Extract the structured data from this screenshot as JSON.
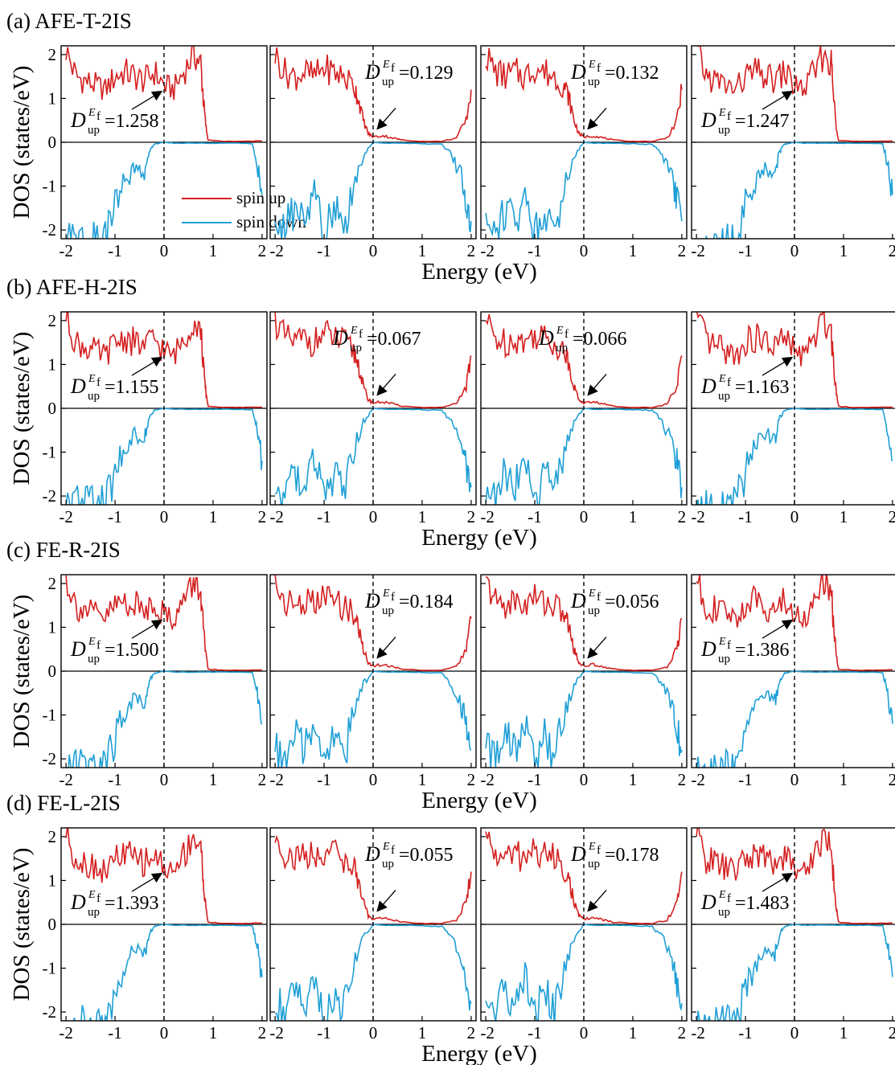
{
  "chart_data": {
    "type": "line",
    "x_ticks": [
      "-2",
      "-1",
      "0",
      "1",
      "2"
    ],
    "y_ticks": [
      "2",
      "1",
      "0",
      "-1",
      "-2"
    ],
    "xlim": [
      -2.1,
      2.1
    ],
    "ylim": [
      -2.2,
      2.2
    ],
    "xlabel": "Energy (eV)",
    "ylabel": "DOS (states/eV)",
    "legend": {
      "position": "bottom-right of first panel",
      "entries": [
        {
          "name": "spin up",
          "color": "#d42020"
        },
        {
          "name": "spin down",
          "color": "#1f9fd6"
        }
      ]
    },
    "colors": {
      "spin_up": "#d42020",
      "spin_down": "#1f9fd6"
    },
    "annotation_label": {
      "D": "D",
      "sup": "E",
      "sup_sub": "f",
      "sub": "up"
    },
    "groups": [
      {
        "label": "(a) AFE-T-2IS",
        "fermi": [
          0.0,
          0.0,
          0.0,
          0.0
        ],
        "annotations": [
          "=1.258",
          "=0.129",
          "=0.132",
          "=1.247"
        ]
      },
      {
        "label": "(b) AFE-H-2IS",
        "fermi": [
          0.0,
          0.0,
          0.0,
          0.0
        ],
        "annotations": [
          "=1.155",
          "=0.067",
          "=0.066",
          "=1.163"
        ]
      },
      {
        "label": "(c) FE-R-2IS",
        "fermi": [
          0.0,
          0.0,
          0.0,
          0.0
        ],
        "annotations": [
          "=1.500",
          "=0.184",
          "=0.056",
          "=1.386"
        ]
      },
      {
        "label": "(d) FE-L-2IS",
        "fermi": [
          0.0,
          0.0,
          0.0,
          0.0
        ],
        "annotations": [
          "=1.393",
          "=0.055",
          "=0.178",
          "=1.483"
        ]
      }
    ],
    "series_shapes": {
      "metallic_up": {
        "x": [
          -2.0,
          -1.8,
          -1.6,
          -1.4,
          -1.2,
          -1.0,
          -0.8,
          -0.6,
          -0.4,
          -0.2,
          0.0,
          0.2,
          0.4,
          0.6,
          0.75,
          0.8,
          0.85,
          0.9,
          1.2,
          1.6,
          2.0
        ],
        "y": [
          2.1,
          1.5,
          1.4,
          1.3,
          1.2,
          1.5,
          1.6,
          1.5,
          1.4,
          1.6,
          1.3,
          1.2,
          1.6,
          2.0,
          1.8,
          1.0,
          0.4,
          0.05,
          0.02,
          0.02,
          0.03
        ]
      },
      "metallic_down": {
        "x": [
          -2.0,
          -1.8,
          -1.6,
          -1.4,
          -1.2,
          -1.0,
          -0.8,
          -0.6,
          -0.4,
          -0.3,
          -0.2,
          -0.1,
          0.0,
          0.2,
          0.6,
          1.0,
          1.4,
          1.8,
          1.9,
          2.0
        ],
        "y": [
          -2.2,
          -2.2,
          -2.2,
          -2.2,
          -2.2,
          -1.5,
          -0.9,
          -0.6,
          -0.7,
          -0.2,
          -0.05,
          -0.02,
          0.0,
          -0.02,
          -0.02,
          -0.02,
          -0.02,
          -0.03,
          -0.5,
          -1.2
        ]
      },
      "gapped_up": {
        "x": [
          -2.0,
          -1.8,
          -1.6,
          -1.4,
          -1.2,
          -1.0,
          -0.8,
          -0.6,
          -0.4,
          -0.3,
          -0.2,
          -0.1,
          0.0,
          0.2,
          0.4,
          0.6,
          1.0,
          1.4,
          1.7,
          1.9,
          2.0
        ],
        "y": [
          2.0,
          1.6,
          1.5,
          1.6,
          1.5,
          1.7,
          1.6,
          1.5,
          1.3,
          1.0,
          0.5,
          0.2,
          0.12,
          0.15,
          0.1,
          0.05,
          0.02,
          0.02,
          0.1,
          0.5,
          1.2
        ]
      },
      "gapped_down": {
        "x": [
          -2.0,
          -1.8,
          -1.6,
          -1.4,
          -1.2,
          -1.0,
          -0.8,
          -0.6,
          -0.4,
          -0.2,
          0.0,
          0.2,
          0.6,
          1.0,
          1.4,
          1.6,
          1.8,
          1.9,
          2.0
        ],
        "y": [
          -1.8,
          -2.0,
          -1.5,
          -1.8,
          -1.2,
          -2.1,
          -1.5,
          -2.0,
          -1.0,
          -0.3,
          0.0,
          -0.02,
          -0.02,
          -0.03,
          -0.05,
          -0.3,
          -0.8,
          -1.3,
          -1.8
        ]
      }
    }
  }
}
